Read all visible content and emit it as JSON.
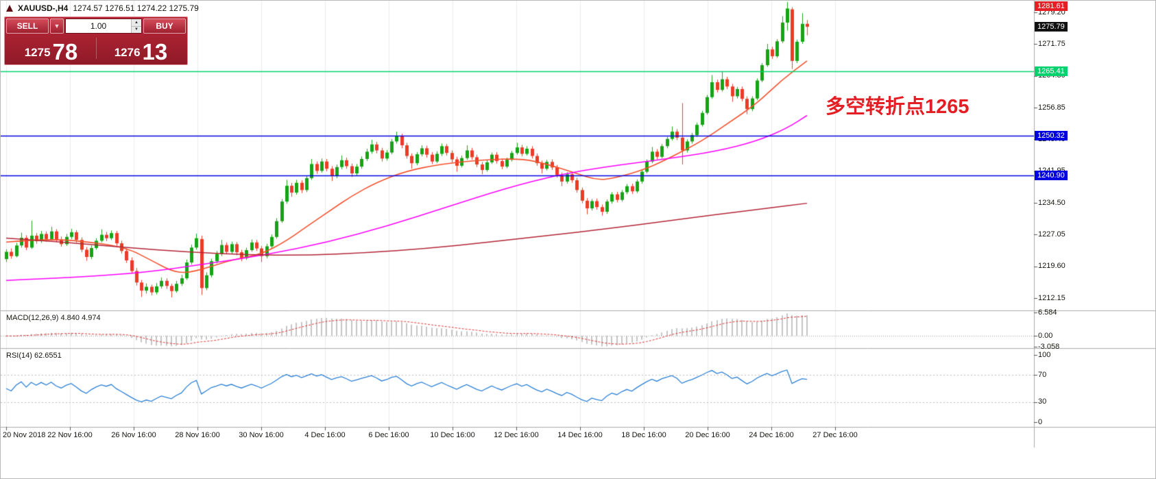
{
  "window": {
    "title_symbol": "XAUUSD-,H4",
    "title_ohlc": "1274.57 1276.51 1274.22 1275.79"
  },
  "trade_panel": {
    "sell_label": "SELL",
    "buy_label": "BUY",
    "volume": "1.00",
    "sell_price_big": "1275",
    "sell_price_sup": "78",
    "buy_price_big": "1276",
    "buy_price_sup": "13"
  },
  "annotation": {
    "text": "多空转折点1265",
    "color": "#e31e24"
  },
  "chart_data": {
    "type": "candlestick",
    "symbol": "XAUUSD",
    "timeframe": "H4",
    "title": "XAUUSD-,H4 1274.57 1276.51 1274.22 1275.79",
    "ylim": [
      1212.15,
      1279.2
    ],
    "up_color": "#16a316",
    "down_color": "#ea3c28",
    "price_axis_labels": [
      "1279.20",
      "1271.75",
      "1264.30",
      "1256.85",
      "1249.40",
      "1241.95",
      "1234.50",
      "1227.05",
      "1219.60",
      "1212.15"
    ],
    "time_labels": [
      "20 Nov 2018",
      "22 Nov 16:00",
      "26 Nov 16:00",
      "28 Nov 16:00",
      "30 Nov 16:00",
      "4 Dec 16:00",
      "6 Dec 16:00",
      "10 Dec 16:00",
      "12 Dec 16:00",
      "14 Dec 16:00",
      "18 Dec 16:00",
      "20 Dec 16:00",
      "24 Dec 16:00",
      "27 Dec 16:00"
    ],
    "hlines": [
      {
        "price": 1265.41,
        "label": "1265.41",
        "color": "#00d26e"
      },
      {
        "price": 1250.32,
        "label": "1250.32",
        "color": "#0000e0"
      },
      {
        "price": 1240.9,
        "label": "1240.90",
        "color": "#0000e0"
      }
    ],
    "price_tags": [
      {
        "price": 1281.61,
        "label": "1281.61",
        "bg": "#e61e25"
      },
      {
        "price": 1275.79,
        "label": "1275.79",
        "bg": "#111111"
      }
    ],
    "moving_averages": [
      {
        "name": "fast-ma",
        "color": "#f4502c",
        "width": 1.6,
        "points": [
          [
            0,
            1225.3
          ],
          [
            7,
            1226.0
          ],
          [
            15,
            1225.6
          ],
          [
            24,
            1224.0
          ],
          [
            29,
            1221.0
          ],
          [
            33,
            1218.5
          ],
          [
            36,
            1218.0
          ],
          [
            40,
            1219.2
          ],
          [
            45,
            1221.1
          ],
          [
            51,
            1222.4
          ],
          [
            56,
            1225.6
          ],
          [
            60,
            1228.9
          ],
          [
            65,
            1232.9
          ],
          [
            69,
            1236.1
          ],
          [
            74,
            1239.3
          ],
          [
            80,
            1242.0
          ],
          [
            87,
            1243.6
          ],
          [
            95,
            1244.6
          ],
          [
            103,
            1244.9
          ],
          [
            108,
            1243.6
          ],
          [
            114,
            1241.4
          ],
          [
            118,
            1239.8
          ],
          [
            122,
            1240.4
          ],
          [
            128,
            1242.5
          ],
          [
            133,
            1245.3
          ],
          [
            139,
            1249.0
          ],
          [
            144,
            1253.0
          ],
          [
            150,
            1257.8
          ],
          [
            155,
            1263.4
          ],
          [
            160,
            1267.8
          ]
        ]
      },
      {
        "name": "medium-ma",
        "color": "#ff00ff",
        "width": 1.5,
        "points": [
          [
            0,
            1216.3
          ],
          [
            14,
            1217.0
          ],
          [
            28,
            1218.2
          ],
          [
            40,
            1220.2
          ],
          [
            52,
            1222.3
          ],
          [
            64,
            1225.2
          ],
          [
            76,
            1229.0
          ],
          [
            88,
            1233.5
          ],
          [
            100,
            1238.0
          ],
          [
            110,
            1241.0
          ],
          [
            120,
            1243.0
          ],
          [
            132,
            1244.8
          ],
          [
            142,
            1246.6
          ],
          [
            150,
            1249.0
          ],
          [
            156,
            1252.0
          ],
          [
            160,
            1255.0
          ]
        ]
      },
      {
        "name": "slow-ma",
        "color": "#b22234",
        "width": 1.5,
        "points": [
          [
            0,
            1226.2
          ],
          [
            12,
            1225.2
          ],
          [
            24,
            1224.0
          ],
          [
            36,
            1223.0
          ],
          [
            48,
            1222.3
          ],
          [
            60,
            1222.2
          ],
          [
            72,
            1222.8
          ],
          [
            84,
            1223.8
          ],
          [
            96,
            1225.2
          ],
          [
            108,
            1226.8
          ],
          [
            120,
            1228.4
          ],
          [
            132,
            1230.2
          ],
          [
            142,
            1231.8
          ],
          [
            152,
            1233.2
          ],
          [
            160,
            1234.4
          ]
        ]
      }
    ],
    "indicators": {
      "macd": {
        "label": "MACD(12,26,9)",
        "values_text": "4.840 4.974",
        "axis_labels": [
          "6.584",
          "0.00",
          "-3.058"
        ],
        "range": [
          -3.058,
          6.584
        ],
        "histogram_color": "#c4c4c4",
        "signal_color": "#e03232"
      },
      "rsi": {
        "label": "RSI(14)",
        "value_text": "62.6551",
        "axis_labels": [
          "100",
          "70",
          "30",
          "0"
        ],
        "levels": [
          70,
          30
        ],
        "range": [
          0,
          100
        ],
        "line_color": "#2a7fd4"
      }
    },
    "candles": [
      [
        1221.3,
        1223.6,
        1220.6,
        1223.0
      ],
      [
        1223.0,
        1223.8,
        1221.4,
        1222.0
      ],
      [
        1222.0,
        1225.1,
        1221.7,
        1224.5
      ],
      [
        1224.5,
        1227.5,
        1224.0,
        1226.3
      ],
      [
        1226.3,
        1226.9,
        1223.4,
        1224.0
      ],
      [
        1224.0,
        1230.3,
        1223.7,
        1226.8
      ],
      [
        1226.8,
        1227.4,
        1224.9,
        1225.5
      ],
      [
        1225.5,
        1227.9,
        1225.1,
        1227.2
      ],
      [
        1227.2,
        1227.8,
        1225.4,
        1226.0
      ],
      [
        1226.0,
        1228.9,
        1225.7,
        1227.8
      ],
      [
        1227.8,
        1228.3,
        1225.3,
        1225.9
      ],
      [
        1225.9,
        1226.6,
        1224.2,
        1224.8
      ],
      [
        1224.8,
        1227.2,
        1224.4,
        1226.5
      ],
      [
        1226.5,
        1228.4,
        1226.0,
        1227.6
      ],
      [
        1227.6,
        1228.1,
        1225.2,
        1225.8
      ],
      [
        1225.8,
        1226.4,
        1222.9,
        1223.5
      ],
      [
        1223.5,
        1224.1,
        1220.9,
        1221.8
      ],
      [
        1221.8,
        1224.5,
        1221.3,
        1223.9
      ],
      [
        1223.9,
        1226.2,
        1223.5,
        1225.6
      ],
      [
        1225.6,
        1228.3,
        1225.2,
        1227.0
      ],
      [
        1227.0,
        1227.7,
        1225.5,
        1226.2
      ],
      [
        1226.2,
        1228.0,
        1225.8,
        1227.4
      ],
      [
        1227.4,
        1227.9,
        1224.4,
        1225.0
      ],
      [
        1225.0,
        1225.6,
        1222.6,
        1223.2
      ],
      [
        1223.2,
        1223.8,
        1220.4,
        1221.0
      ],
      [
        1221.0,
        1221.7,
        1217.9,
        1218.5
      ],
      [
        1218.5,
        1219.2,
        1215.1,
        1215.8
      ],
      [
        1215.8,
        1216.4,
        1212.4,
        1213.9
      ],
      [
        1213.9,
        1215.6,
        1213.2,
        1214.8
      ],
      [
        1214.8,
        1215.3,
        1212.8,
        1213.5
      ],
      [
        1213.5,
        1215.7,
        1213.0,
        1214.9
      ],
      [
        1214.9,
        1217.0,
        1214.4,
        1216.2
      ],
      [
        1216.2,
        1216.8,
        1214.3,
        1215.0
      ],
      [
        1215.0,
        1215.5,
        1212.3,
        1213.8
      ],
      [
        1213.8,
        1216.2,
        1213.4,
        1215.5
      ],
      [
        1215.5,
        1217.6,
        1215.0,
        1216.8
      ],
      [
        1216.8,
        1221.2,
        1216.4,
        1220.5
      ],
      [
        1220.5,
        1224.7,
        1220.0,
        1224.0
      ],
      [
        1224.0,
        1227.3,
        1223.5,
        1226.2
      ],
      [
        1226.0,
        1226.8,
        1212.9,
        1214.5
      ],
      [
        1214.5,
        1218.2,
        1214.0,
        1217.5
      ],
      [
        1217.5,
        1221.4,
        1217.0,
        1220.8
      ],
      [
        1220.8,
        1223.2,
        1220.3,
        1222.5
      ],
      [
        1222.5,
        1225.8,
        1222.0,
        1224.6
      ],
      [
        1224.6,
        1225.2,
        1222.4,
        1223.0
      ],
      [
        1223.0,
        1225.4,
        1222.6,
        1224.8
      ],
      [
        1224.8,
        1225.3,
        1222.2,
        1222.9
      ],
      [
        1222.9,
        1223.5,
        1220.8,
        1221.5
      ],
      [
        1221.5,
        1224.0,
        1221.1,
        1223.4
      ],
      [
        1223.4,
        1225.9,
        1223.0,
        1225.2
      ],
      [
        1225.2,
        1225.8,
        1223.2,
        1223.8
      ],
      [
        1223.8,
        1224.4,
        1220.6,
        1222.0
      ],
      [
        1222.0,
        1224.9,
        1221.5,
        1224.3
      ],
      [
        1224.3,
        1227.1,
        1223.9,
        1226.5
      ],
      [
        1226.5,
        1230.9,
        1226.1,
        1230.2
      ],
      [
        1230.2,
        1235.4,
        1229.8,
        1234.8
      ],
      [
        1234.8,
        1239.9,
        1234.3,
        1238.5
      ],
      [
        1238.5,
        1239.2,
        1235.9,
        1236.9
      ],
      [
        1236.9,
        1239.9,
        1236.4,
        1239.2
      ],
      [
        1239.2,
        1239.8,
        1236.8,
        1237.5
      ],
      [
        1237.5,
        1240.9,
        1237.0,
        1240.3
      ],
      [
        1240.3,
        1244.8,
        1239.9,
        1243.6
      ],
      [
        1243.6,
        1244.2,
        1241.3,
        1242.0
      ],
      [
        1242.0,
        1244.9,
        1241.6,
        1244.2
      ],
      [
        1244.2,
        1244.8,
        1241.9,
        1242.5
      ],
      [
        1242.5,
        1243.1,
        1239.6,
        1240.8
      ],
      [
        1240.8,
        1243.5,
        1240.3,
        1242.9
      ],
      [
        1242.9,
        1245.6,
        1242.4,
        1244.5
      ],
      [
        1244.5,
        1245.1,
        1242.5,
        1243.1
      ],
      [
        1243.1,
        1243.7,
        1240.6,
        1241.4
      ],
      [
        1241.4,
        1243.6,
        1240.9,
        1243.0
      ],
      [
        1243.0,
        1245.4,
        1242.5,
        1244.8
      ],
      [
        1244.8,
        1247.2,
        1244.3,
        1246.5
      ],
      [
        1246.5,
        1249.3,
        1246.0,
        1248.2
      ],
      [
        1248.2,
        1248.8,
        1246.1,
        1246.8
      ],
      [
        1246.8,
        1247.4,
        1244.2,
        1244.9
      ],
      [
        1244.9,
        1246.9,
        1244.4,
        1246.3
      ],
      [
        1246.3,
        1249.5,
        1245.9,
        1248.9
      ],
      [
        1248.9,
        1251.2,
        1248.4,
        1250.1
      ],
      [
        1250.1,
        1250.7,
        1247.3,
        1248.0
      ],
      [
        1248.0,
        1248.6,
        1244.9,
        1245.5
      ],
      [
        1245.5,
        1246.1,
        1242.5,
        1243.8
      ],
      [
        1243.8,
        1246.4,
        1243.3,
        1245.9
      ],
      [
        1245.9,
        1248.0,
        1245.4,
        1247.3
      ],
      [
        1247.3,
        1247.9,
        1245.1,
        1245.8
      ],
      [
        1245.8,
        1246.4,
        1243.6,
        1244.2
      ],
      [
        1244.2,
        1246.6,
        1243.8,
        1246.0
      ],
      [
        1246.0,
        1248.4,
        1245.5,
        1247.8
      ],
      [
        1247.8,
        1248.3,
        1245.6,
        1246.2
      ],
      [
        1246.2,
        1246.8,
        1244.0,
        1244.7
      ],
      [
        1244.7,
        1245.3,
        1241.8,
        1243.2
      ],
      [
        1243.2,
        1245.6,
        1242.8,
        1245.0
      ],
      [
        1245.0,
        1248.0,
        1244.6,
        1246.8
      ],
      [
        1246.8,
        1247.4,
        1244.6,
        1245.2
      ],
      [
        1245.2,
        1245.8,
        1242.9,
        1243.5
      ],
      [
        1243.5,
        1244.1,
        1241.2,
        1242.2
      ],
      [
        1242.2,
        1244.5,
        1241.8,
        1244.0
      ],
      [
        1244.0,
        1246.3,
        1243.6,
        1245.8
      ],
      [
        1245.8,
        1246.4,
        1243.7,
        1244.3
      ],
      [
        1244.3,
        1244.9,
        1242.4,
        1243.0
      ],
      [
        1243.0,
        1245.1,
        1242.6,
        1244.6
      ],
      [
        1244.6,
        1246.7,
        1244.2,
        1246.2
      ],
      [
        1246.2,
        1248.6,
        1245.8,
        1247.5
      ],
      [
        1247.5,
        1248.1,
        1245.4,
        1246.0
      ],
      [
        1246.0,
        1247.8,
        1245.6,
        1247.2
      ],
      [
        1247.2,
        1247.8,
        1244.9,
        1245.5
      ],
      [
        1245.5,
        1246.1,
        1243.2,
        1243.8
      ],
      [
        1243.8,
        1244.4,
        1241.4,
        1242.5
      ],
      [
        1242.5,
        1244.6,
        1242.1,
        1244.1
      ],
      [
        1244.1,
        1244.7,
        1242.2,
        1242.8
      ],
      [
        1242.8,
        1243.4,
        1240.4,
        1241.0
      ],
      [
        1241.0,
        1241.6,
        1238.4,
        1239.5
      ],
      [
        1239.5,
        1241.7,
        1239.0,
        1241.2
      ],
      [
        1241.2,
        1241.8,
        1239.2,
        1239.8
      ],
      [
        1239.8,
        1240.4,
        1236.9,
        1237.5
      ],
      [
        1237.5,
        1238.1,
        1234.4,
        1235.0
      ],
      [
        1235.0,
        1235.6,
        1231.8,
        1233.2
      ],
      [
        1233.2,
        1235.4,
        1232.7,
        1234.9
      ],
      [
        1234.9,
        1235.5,
        1232.9,
        1233.5
      ],
      [
        1233.5,
        1234.1,
        1231.5,
        1232.4
      ],
      [
        1232.4,
        1235.3,
        1231.9,
        1234.8
      ],
      [
        1234.8,
        1237.0,
        1234.3,
        1236.5
      ],
      [
        1236.5,
        1237.1,
        1234.6,
        1235.2
      ],
      [
        1235.2,
        1237.5,
        1234.8,
        1237.0
      ],
      [
        1237.0,
        1238.9,
        1236.5,
        1238.4
      ],
      [
        1238.4,
        1239.0,
        1236.6,
        1237.2
      ],
      [
        1237.2,
        1240.0,
        1236.8,
        1239.5
      ],
      [
        1239.5,
        1242.3,
        1239.0,
        1241.8
      ],
      [
        1241.8,
        1244.7,
        1241.4,
        1244.2
      ],
      [
        1244.2,
        1247.6,
        1243.8,
        1246.5
      ],
      [
        1246.5,
        1247.1,
        1244.7,
        1245.3
      ],
      [
        1245.3,
        1248.3,
        1244.9,
        1247.8
      ],
      [
        1247.8,
        1250.0,
        1247.3,
        1249.5
      ],
      [
        1249.5,
        1252.4,
        1249.1,
        1251.2
      ],
      [
        1251.2,
        1251.8,
        1249.2,
        1249.8
      ],
      [
        1249.8,
        1257.9,
        1243.5,
        1246.8
      ],
      [
        1246.8,
        1249.4,
        1246.3,
        1248.9
      ],
      [
        1248.9,
        1250.9,
        1248.4,
        1250.4
      ],
      [
        1250.4,
        1253.3,
        1250.0,
        1252.8
      ],
      [
        1252.8,
        1256.1,
        1252.4,
        1255.6
      ],
      [
        1255.6,
        1259.8,
        1255.2,
        1259.3
      ],
      [
        1259.3,
        1264.5,
        1258.9,
        1262.8
      ],
      [
        1262.8,
        1263.4,
        1260.4,
        1261.0
      ],
      [
        1261.0,
        1265.4,
        1260.6,
        1263.5
      ],
      [
        1263.5,
        1264.1,
        1261.2,
        1261.8
      ],
      [
        1261.8,
        1262.4,
        1258.2,
        1259.5
      ],
      [
        1259.5,
        1261.7,
        1259.0,
        1261.2
      ],
      [
        1261.2,
        1261.8,
        1258.3,
        1258.9
      ],
      [
        1258.9,
        1259.5,
        1255.3,
        1256.5
      ],
      [
        1256.5,
        1259.5,
        1256.0,
        1259.0
      ],
      [
        1259.0,
        1263.7,
        1258.6,
        1263.2
      ],
      [
        1263.2,
        1267.3,
        1262.8,
        1266.8
      ],
      [
        1266.8,
        1271.8,
        1266.4,
        1270.5
      ],
      [
        1270.5,
        1271.1,
        1268.3,
        1268.9
      ],
      [
        1268.9,
        1272.9,
        1268.5,
        1272.4
      ],
      [
        1272.4,
        1278.3,
        1272.0,
        1276.8
      ],
      [
        1276.8,
        1281.6,
        1274.9,
        1280.1
      ],
      [
        1279.9,
        1280.4,
        1265.9,
        1267.8
      ],
      [
        1267.8,
        1272.8,
        1267.3,
        1272.3
      ],
      [
        1272.3,
        1279.0,
        1271.8,
        1276.5
      ],
      [
        1276.5,
        1277.4,
        1273.8,
        1275.8
      ]
    ]
  }
}
